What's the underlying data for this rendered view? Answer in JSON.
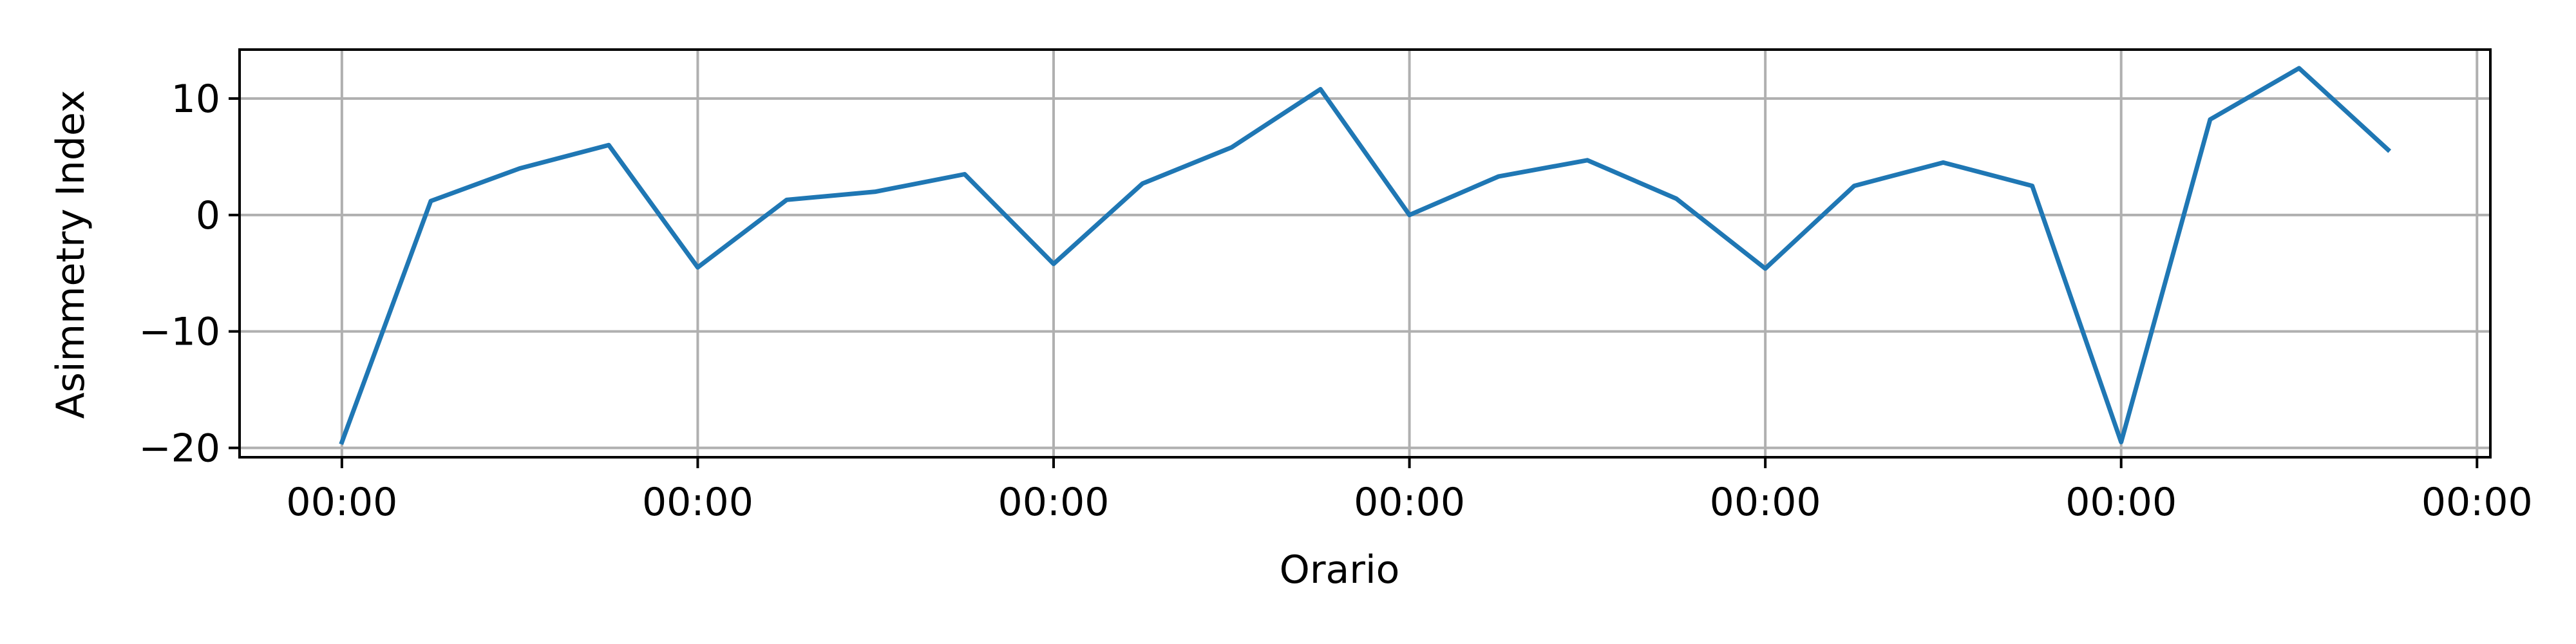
{
  "chart_data": {
    "type": "line",
    "title": "",
    "xlabel": "Orario",
    "ylabel": "Asimmetry Index",
    "x_tick_labels": [
      "00:00",
      "00:00",
      "00:00",
      "00:00",
      "00:00",
      "00:00",
      "00:00"
    ],
    "y_ticks": [
      -20,
      -10,
      0,
      10
    ],
    "y_tick_labels": [
      "−20",
      "−10",
      "0",
      "10"
    ],
    "ylim": [
      -20.8,
      14.2
    ],
    "grid": true,
    "legend": "none",
    "series": [
      {
        "color": "#1f77b4",
        "x": [
          0,
          1,
          2,
          3,
          4,
          5,
          6,
          7,
          8,
          9,
          10,
          11,
          12,
          13,
          14,
          15,
          16,
          17,
          18,
          19,
          20,
          21,
          22,
          23
        ],
        "values": [
          -19.5,
          1.2,
          4.0,
          6.0,
          -4.5,
          1.3,
          2.0,
          3.5,
          -4.2,
          2.7,
          5.8,
          10.8,
          0.0,
          3.3,
          4.7,
          1.4,
          -4.6,
          2.5,
          4.5,
          2.5,
          -19.5,
          8.2,
          12.6,
          5.6
        ]
      }
    ],
    "x_tick_positions": [
      0,
      4,
      8,
      12,
      16,
      20,
      24
    ],
    "xlim": [
      -1.15,
      24.15
    ]
  }
}
